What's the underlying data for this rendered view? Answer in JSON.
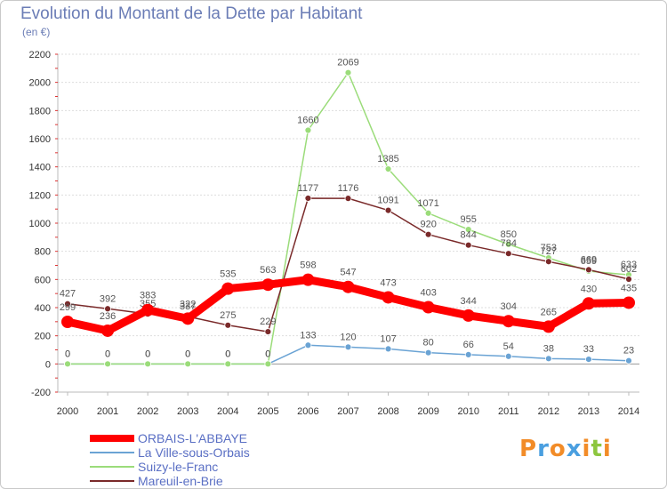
{
  "header": {
    "title": "Evolution du Montant de la Dette par Habitant",
    "subtitle": "(en €)"
  },
  "colors": {
    "background": "#ffffff",
    "grid": "#dddddd",
    "zero_line": "#999999",
    "axis_tick_red": "#dd3333"
  },
  "chart_data": {
    "type": "line",
    "title": "Evolution du Montant de la Dette par Habitant",
    "subtitle": "(en €)",
    "xlabel": "",
    "ylabel": "",
    "ylim": [
      -200,
      2200
    ],
    "y_ticks": [
      -200,
      0,
      200,
      400,
      600,
      800,
      1000,
      1200,
      1400,
      1600,
      1800,
      2000,
      2200
    ],
    "categories": [
      "2000",
      "2001",
      "2002",
      "2003",
      "2004",
      "2005",
      "2006",
      "2007",
      "2008",
      "2009",
      "2010",
      "2011",
      "2012",
      "2013",
      "2014"
    ],
    "grid": true,
    "legend_position": "bottom-left",
    "series": [
      {
        "name": "ORBAIS-L'ABBAYE",
        "color": "#ff0000",
        "emphasis": true,
        "values": [
          299,
          236,
          383,
          322,
          535,
          563,
          598,
          547,
          473,
          403,
          344,
          304,
          265,
          430,
          435
        ]
      },
      {
        "name": "La Ville-sous-Orbais",
        "color": "#6aa3d4",
        "emphasis": false,
        "values": [
          0,
          0,
          0,
          0,
          0,
          0,
          133,
          120,
          107,
          80,
          66,
          54,
          38,
          33,
          23
        ]
      },
      {
        "name": "Suizy-le-Franc",
        "color": "#9bdc7a",
        "emphasis": false,
        "values": [
          0,
          0,
          0,
          0,
          0,
          0,
          1660,
          2069,
          1385,
          1071,
          955,
          850,
          753,
          659,
          633
        ]
      },
      {
        "name": "Mareuil-en-Brie",
        "color": "#7a2a2a",
        "emphasis": false,
        "values": [
          427,
          392,
          355,
          337,
          275,
          229,
          1177,
          1176,
          1091,
          920,
          844,
          784,
          727,
          669,
          602
        ]
      }
    ]
  },
  "logo": {
    "text": "Proxiti",
    "letters": [
      {
        "ch": "P",
        "color": "#f28c28"
      },
      {
        "ch": "r",
        "color": "#4a9fe0"
      },
      {
        "ch": "o",
        "color": "#f28c28"
      },
      {
        "ch": "x",
        "color": "#4a9fe0"
      },
      {
        "ch": "i",
        "color": "#f28c28"
      },
      {
        "ch": "t",
        "color": "#8dc63f"
      },
      {
        "ch": "i",
        "color": "#f28c28"
      }
    ]
  }
}
